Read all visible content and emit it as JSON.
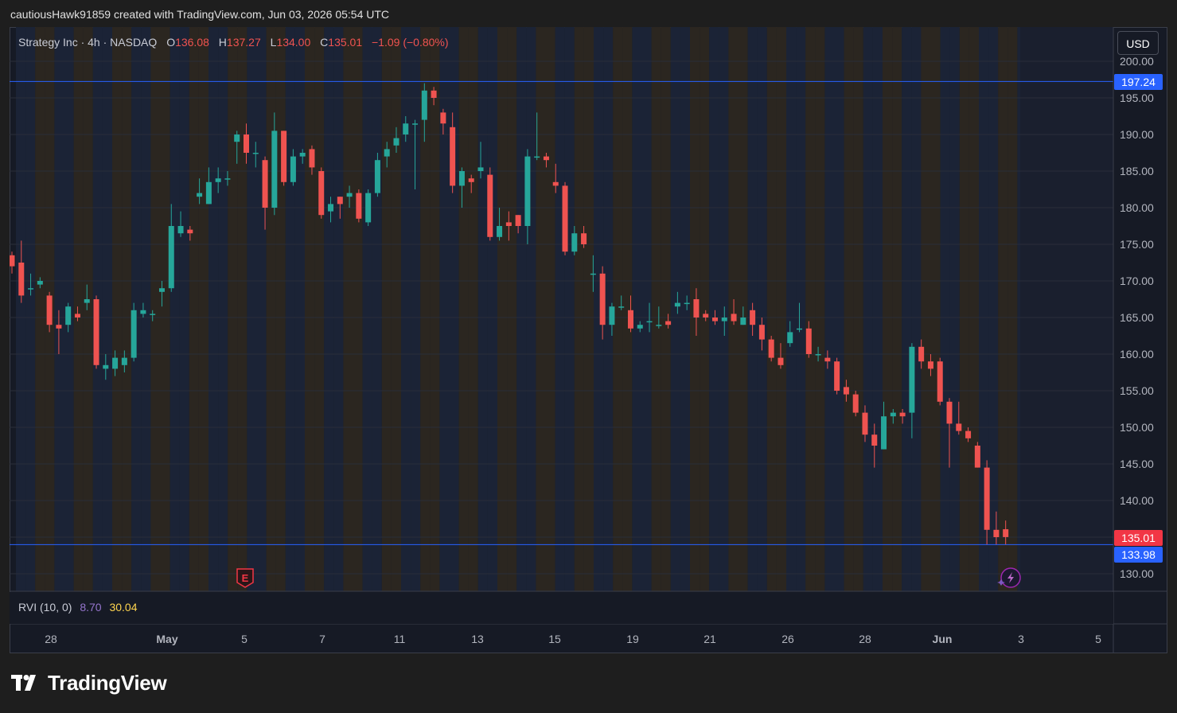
{
  "header": {
    "caption": "cautiousHawk91859 created with TradingView.com, Jun 03, 2026 05:54 UTC"
  },
  "legend": {
    "symbol": "Strategy Inc · 4h · NASDAQ",
    "o_label": "O",
    "o_value": "136.08",
    "h_label": "H",
    "h_value": "137.27",
    "l_label": "L",
    "l_value": "134.00",
    "c_label": "C",
    "c_value": "135.01",
    "change": "−1.09 (−0.80%)"
  },
  "currency": "USD",
  "price_tags": {
    "top_line": "197.24",
    "last": "135.01",
    "bottom_line": "133.98"
  },
  "indicator": {
    "name": "RVI (10, 0)",
    "value1": "8.70",
    "value2": "30.04"
  },
  "brand": {
    "name": "TradingView"
  },
  "colors": {
    "up": "#26a69a",
    "down": "#ef5350",
    "line": "#2962ff",
    "band_blue": "#1b2336",
    "band_brown": "#2b2620",
    "background": "#161a25"
  },
  "chart_data": {
    "type": "candlestick",
    "interval": "4h",
    "ylim": [
      127.5,
      202
    ],
    "y_ticks": [
      "130.00",
      "135.00",
      "140.00",
      "145.00",
      "150.00",
      "155.00",
      "160.00",
      "165.00",
      "170.00",
      "175.00",
      "180.00",
      "185.00",
      "190.00",
      "195.00",
      "200.00"
    ],
    "x_ticks": [
      "28",
      "May",
      "5",
      "7",
      "11",
      "13",
      "15",
      "19",
      "21",
      "26",
      "28",
      "Jun",
      "3",
      "5"
    ],
    "horizontal_lines": [
      197.24,
      133.98
    ],
    "events": [
      "E"
    ],
    "candles": [
      [
        173.5,
        172.0,
        174.0,
        171.0
      ],
      [
        172.5,
        168.0,
        175.5,
        167.0
      ],
      [
        169.0,
        169.0,
        171.0,
        168.0
      ],
      [
        169.5,
        170.0,
        170.5,
        169.0
      ],
      [
        168.0,
        164.0,
        168.5,
        163.0
      ],
      [
        164.0,
        163.5,
        166.0,
        160.0
      ],
      [
        164.0,
        166.5,
        167.0,
        163.0
      ],
      [
        165.5,
        165.0,
        166.5,
        164.5
      ],
      [
        167.0,
        167.5,
        169.5,
        166.0
      ],
      [
        167.5,
        158.5,
        168.0,
        158.0
      ],
      [
        158.0,
        158.5,
        160.0,
        156.5
      ],
      [
        158.0,
        159.5,
        160.5,
        157.0
      ],
      [
        158.5,
        159.5,
        160.5,
        157.5
      ],
      [
        159.5,
        166.0,
        167.0,
        159.0
      ],
      [
        165.5,
        166.0,
        167.0,
        165.0
      ],
      [
        165.5,
        165.5,
        166.0,
        164.5
      ],
      [
        168.5,
        169.0,
        170.0,
        166.5
      ],
      [
        169.0,
        177.5,
        180.5,
        168.5
      ],
      [
        176.5,
        177.5,
        179.5,
        176.0
      ],
      [
        177.0,
        176.5,
        177.5,
        175.5
      ],
      [
        181.5,
        182.0,
        184.0,
        180.5
      ],
      [
        180.5,
        183.5,
        185.5,
        180.5
      ],
      [
        183.5,
        184.0,
        185.5,
        182.0
      ],
      [
        184.0,
        184.0,
        185.0,
        183.0
      ],
      [
        189.0,
        190.0,
        190.5,
        186.0
      ],
      [
        190.0,
        187.5,
        191.5,
        186.0
      ],
      [
        187.5,
        187.5,
        189.0,
        185.5
      ],
      [
        186.5,
        180.0,
        187.0,
        177.0
      ],
      [
        180.0,
        190.5,
        193.0,
        179.0
      ],
      [
        190.5,
        183.5,
        190.5,
        183.0
      ],
      [
        183.5,
        187.0,
        188.0,
        183.0
      ],
      [
        187.0,
        187.5,
        188.0,
        186.0
      ],
      [
        188.0,
        185.5,
        188.5,
        184.5
      ],
      [
        185.0,
        179.0,
        185.5,
        178.5
      ],
      [
        179.5,
        180.5,
        181.5,
        178.0
      ],
      [
        181.5,
        180.5,
        181.5,
        178.5
      ],
      [
        181.5,
        182.0,
        183.0,
        180.0
      ],
      [
        182.0,
        178.5,
        182.5,
        178.0
      ],
      [
        178.0,
        182.0,
        182.5,
        177.5
      ],
      [
        182.0,
        186.5,
        187.5,
        181.5
      ],
      [
        187.0,
        188.0,
        189.0,
        185.5
      ],
      [
        188.5,
        189.5,
        191.0,
        187.5
      ],
      [
        190.0,
        191.5,
        192.5,
        189.0
      ],
      [
        191.5,
        191.5,
        192.0,
        182.5
      ],
      [
        192.0,
        196.0,
        197.0,
        189.0
      ],
      [
        196.0,
        195.0,
        196.5,
        194.0
      ],
      [
        193.0,
        191.5,
        193.5,
        190.0
      ],
      [
        191.0,
        183.0,
        193.0,
        182.0
      ],
      [
        183.0,
        185.0,
        185.5,
        180.0
      ],
      [
        184.0,
        183.5,
        184.5,
        182.0
      ],
      [
        185.0,
        185.5,
        189.0,
        184.0
      ],
      [
        184.5,
        176.0,
        185.5,
        175.5
      ],
      [
        176.0,
        177.5,
        180.0,
        175.5
      ],
      [
        178.0,
        177.5,
        179.5,
        175.5
      ],
      [
        179.0,
        177.5,
        179.0,
        176.5
      ],
      [
        177.5,
        187.0,
        188.0,
        175.0
      ],
      [
        187.0,
        187.0,
        193.0,
        186.5
      ],
      [
        187.0,
        186.5,
        187.5,
        185.5
      ],
      [
        183.5,
        183.0,
        186.0,
        182.0
      ],
      [
        183.0,
        174.0,
        183.5,
        173.5
      ],
      [
        174.0,
        176.5,
        177.5,
        173.5
      ],
      [
        176.5,
        175.0,
        177.5,
        174.5
      ],
      [
        171.0,
        171.0,
        173.5,
        168.5
      ],
      [
        171.0,
        164.0,
        172.0,
        162.0
      ],
      [
        164.0,
        166.5,
        167.0,
        162.5
      ],
      [
        166.5,
        166.5,
        168.0,
        166.0
      ],
      [
        166.0,
        163.5,
        168.0,
        163.0
      ],
      [
        163.5,
        164.0,
        164.5,
        163.0
      ],
      [
        164.5,
        164.5,
        167.0,
        163.0
      ],
      [
        164.0,
        164.0,
        166.5,
        163.5
      ],
      [
        164.5,
        164.0,
        165.5,
        163.5
      ],
      [
        166.5,
        167.0,
        168.5,
        165.5
      ],
      [
        167.0,
        167.0,
        168.0,
        166.0
      ],
      [
        167.5,
        165.0,
        169.0,
        162.5
      ],
      [
        165.5,
        165.0,
        166.0,
        164.5
      ],
      [
        165.0,
        164.5,
        166.0,
        164.0
      ],
      [
        164.5,
        165.0,
        166.5,
        162.5
      ],
      [
        165.5,
        164.5,
        167.5,
        164.0
      ],
      [
        164.0,
        165.0,
        166.5,
        164.0
      ],
      [
        166.0,
        164.0,
        167.0,
        162.5
      ],
      [
        164.0,
        162.0,
        165.0,
        160.5
      ],
      [
        162.0,
        159.5,
        162.5,
        159.0
      ],
      [
        159.5,
        158.5,
        161.5,
        158.0
      ],
      [
        161.5,
        163.0,
        164.5,
        161.0
      ],
      [
        163.5,
        163.5,
        167.0,
        163.0
      ],
      [
        163.5,
        160.0,
        164.5,
        159.5
      ],
      [
        160.0,
        160.0,
        161.0,
        159.0
      ],
      [
        159.5,
        159.0,
        160.5,
        158.0
      ],
      [
        159.0,
        155.0,
        159.5,
        154.5
      ],
      [
        155.5,
        154.5,
        156.5,
        153.5
      ],
      [
        154.5,
        152.0,
        155.0,
        151.5
      ],
      [
        152.0,
        149.0,
        153.0,
        148.0
      ],
      [
        149.0,
        147.5,
        150.5,
        144.5
      ],
      [
        147.0,
        151.5,
        153.5,
        147.0
      ],
      [
        151.5,
        152.0,
        152.5,
        150.5
      ],
      [
        152.0,
        151.5,
        152.5,
        150.5
      ],
      [
        152.0,
        161.0,
        161.5,
        148.5
      ],
      [
        161.0,
        159.0,
        162.0,
        158.0
      ],
      [
        159.0,
        158.0,
        160.0,
        157.0
      ],
      [
        159.0,
        153.5,
        159.5,
        153.0
      ],
      [
        153.5,
        150.5,
        154.0,
        144.5
      ],
      [
        150.5,
        149.5,
        153.5,
        149.0
      ],
      [
        149.5,
        148.5,
        150.0,
        148.0
      ],
      [
        147.5,
        144.5,
        148.0,
        144.5
      ],
      [
        144.5,
        136.0,
        145.5,
        134.0
      ],
      [
        136.0,
        135.0,
        138.5,
        134.0
      ],
      [
        136.08,
        135.01,
        137.27,
        134.0
      ]
    ]
  }
}
